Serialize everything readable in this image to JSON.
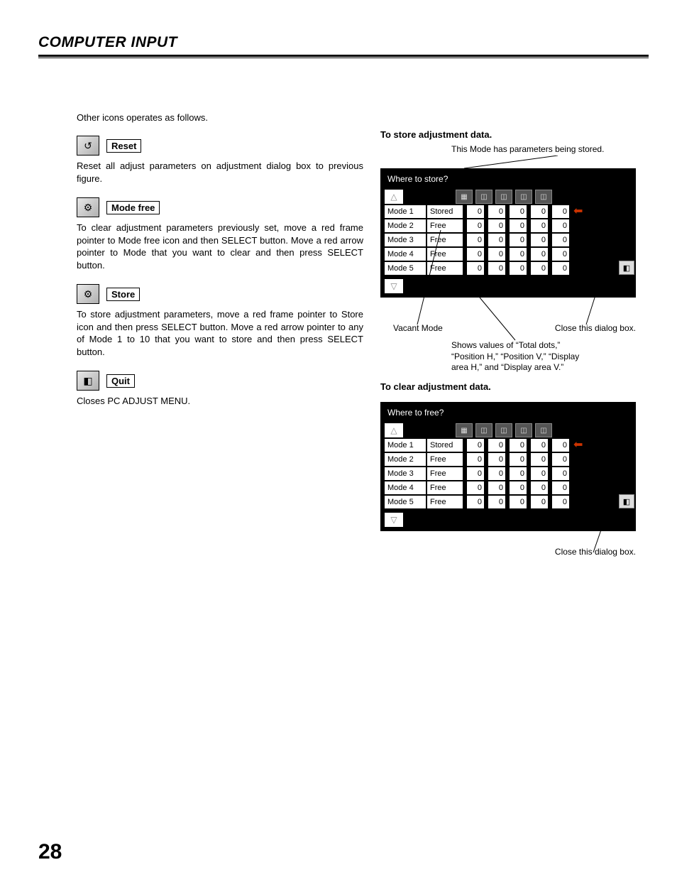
{
  "header": {
    "title": "COMPUTER INPUT"
  },
  "page_number": "28",
  "left": {
    "intro": "Other icons operates as follows.",
    "items": [
      {
        "glyph": "↺",
        "label": "Reset",
        "desc": "Reset all adjust parameters on adjustment dialog box to previous figure."
      },
      {
        "glyph": "⚙",
        "label": "Mode free",
        "desc": "To clear adjustment parameters previously set, move a red frame pointer to Mode free icon and then SELECT button.  Move a red arrow pointer to Mode that you want to clear and then press SELECT button."
      },
      {
        "glyph": "⚙",
        "label": "Store",
        "desc": "To store adjustment parameters, move a red frame pointer to Store icon and then press SELECT button.  Move a red arrow pointer to any of Mode 1 to 10 that you want to store and then press SELECT button."
      },
      {
        "glyph": "◧",
        "label": "Quit",
        "desc": "Closes PC ADJUST MENU."
      }
    ]
  },
  "right": {
    "store": {
      "title": "To store adjustment data.",
      "callout_top": "This Mode has parameters being stored.",
      "dialog_title": "Where to store?",
      "callout_vacant": "Vacant Mode",
      "callout_close": "Close this dialog box.",
      "callout_values": "Shows values of “Total dots,” “Position H,” “Position V,” “Display area H,” and “Display area V.”"
    },
    "clear": {
      "title": "To clear adjustment data.",
      "dialog_title": "Where to free?",
      "callout_close": "Close this dialog box."
    },
    "modes": [
      {
        "name": "Mode 1",
        "status": "Stored",
        "vals": [
          "0",
          "0",
          "0",
          "0",
          "0"
        ],
        "arrow": true
      },
      {
        "name": "Mode 2",
        "status": "Free",
        "vals": [
          "0",
          "0",
          "0",
          "0",
          "0"
        ],
        "arrow": false
      },
      {
        "name": "Mode 3",
        "status": "Free",
        "vals": [
          "0",
          "0",
          "0",
          "0",
          "0"
        ],
        "arrow": false
      },
      {
        "name": "Mode 4",
        "status": "Free",
        "vals": [
          "0",
          "0",
          "0",
          "0",
          "0"
        ],
        "arrow": false
      },
      {
        "name": "Mode 5",
        "status": "Free",
        "vals": [
          "0",
          "0",
          "0",
          "0",
          "0"
        ],
        "arrow": false
      }
    ],
    "header_icons": [
      "▦",
      "◫",
      "◫",
      "◫",
      "◫"
    ]
  },
  "colors": {
    "text": "#000000",
    "bg": "#ffffff",
    "dialog_bg": "#000000",
    "dialog_text": "#ffffff",
    "cell_bg": "#ffffff",
    "arrow": "#cc3300",
    "icon_bg": "#555555"
  }
}
